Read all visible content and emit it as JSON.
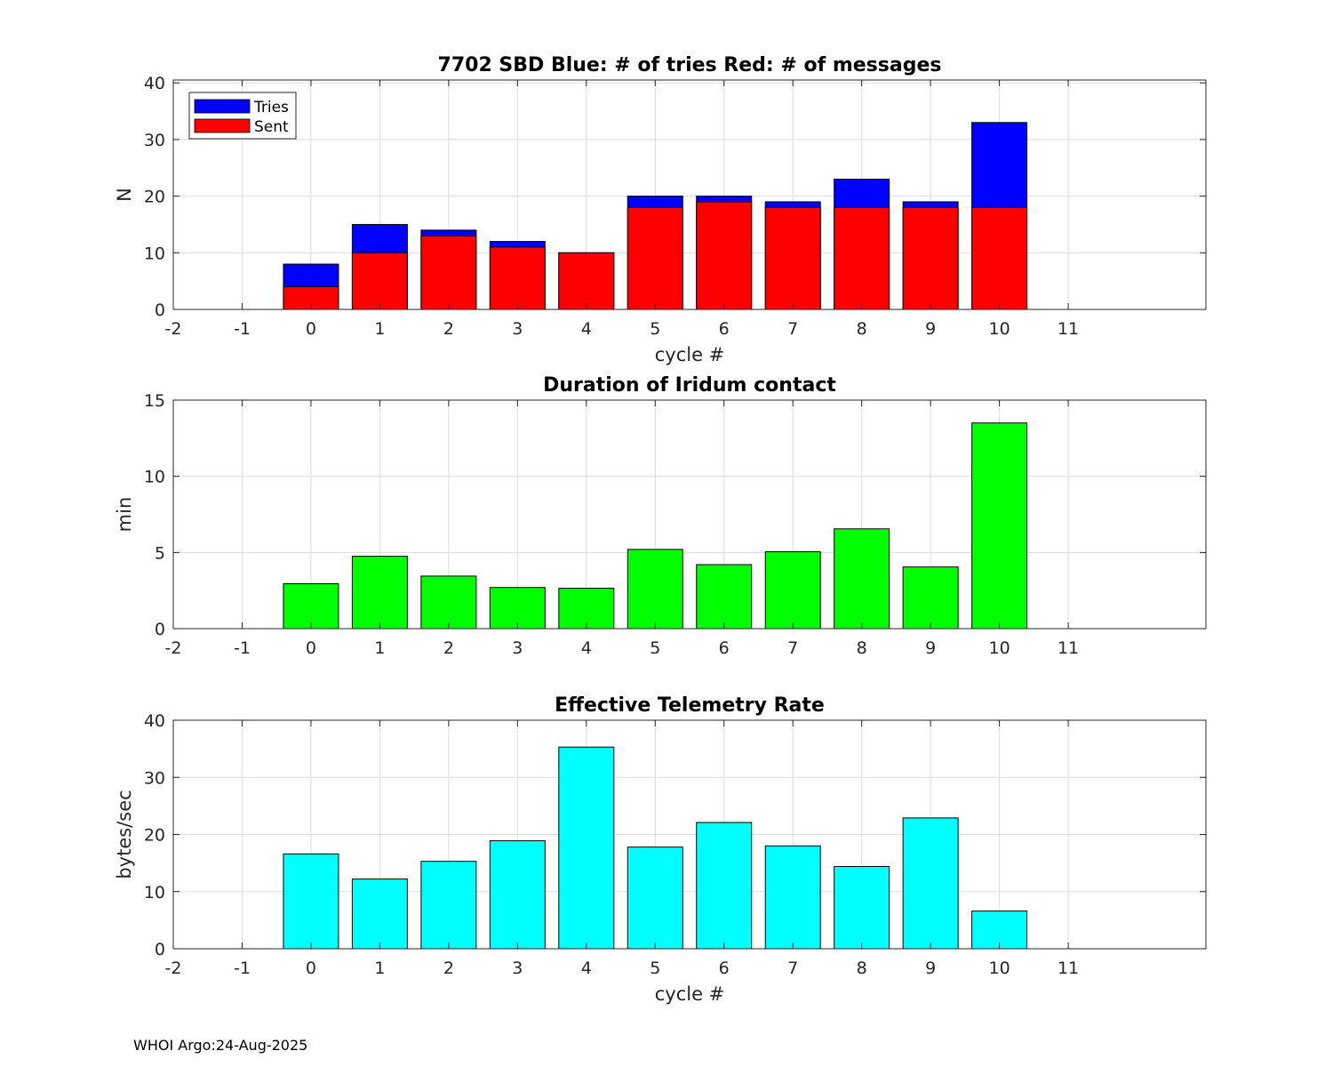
{
  "footer": "WHOI Argo:24-Aug-2025",
  "chart_data": [
    {
      "type": "bar",
      "stacked_overlay": true,
      "title": "7702 SBD  Blue: # of tries   Red: # of messages",
      "xlabel": "cycle #",
      "ylabel": "N",
      "xlim": [
        -2,
        13
      ],
      "ylim": [
        0,
        40.5
      ],
      "xticks": [
        -2,
        -1,
        0,
        1,
        2,
        3,
        4,
        5,
        6,
        7,
        8,
        9,
        10,
        11
      ],
      "yticks": [
        0,
        10,
        20,
        30,
        40
      ],
      "grid": true,
      "legend": {
        "position": "top-left",
        "entries": [
          "Tries",
          "Sent"
        ]
      },
      "x": [
        0,
        1,
        2,
        3,
        4,
        5,
        6,
        7,
        8,
        9,
        10
      ],
      "series": [
        {
          "name": "Tries",
          "color": "#0000ff",
          "values": [
            8,
            15,
            14,
            12,
            10,
            20,
            20,
            19,
            23,
            19,
            33
          ]
        },
        {
          "name": "Sent",
          "color": "#ff0000",
          "values": [
            4,
            10,
            13,
            11,
            10,
            18,
            19,
            18,
            18,
            18,
            18
          ]
        }
      ]
    },
    {
      "type": "bar",
      "title": "Duration of Iridum contact",
      "xlabel": "",
      "ylabel": "min",
      "xlim": [
        -2,
        13
      ],
      "ylim": [
        0,
        15
      ],
      "xticks": [
        -2,
        -1,
        0,
        1,
        2,
        3,
        4,
        5,
        6,
        7,
        8,
        9,
        10,
        11
      ],
      "yticks": [
        0,
        5,
        10,
        15
      ],
      "grid": true,
      "x": [
        0,
        1,
        2,
        3,
        4,
        5,
        6,
        7,
        8,
        9,
        10
      ],
      "series": [
        {
          "name": "Duration",
          "color": "#00ff00",
          "values": [
            2.95,
            4.75,
            3.45,
            2.7,
            2.65,
            5.2,
            4.2,
            5.05,
            6.55,
            4.05,
            13.5
          ]
        }
      ]
    },
    {
      "type": "bar",
      "title": "Effective Telemetry Rate",
      "xlabel": "cycle #",
      "ylabel": "bytes/sec",
      "xlim": [
        -2,
        13
      ],
      "ylim": [
        0,
        40
      ],
      "xticks": [
        -2,
        -1,
        0,
        1,
        2,
        3,
        4,
        5,
        6,
        7,
        8,
        9,
        10,
        11
      ],
      "yticks": [
        0,
        10,
        20,
        30,
        40
      ],
      "grid": true,
      "x": [
        0,
        1,
        2,
        3,
        4,
        5,
        6,
        7,
        8,
        9,
        10
      ],
      "series": [
        {
          "name": "Rate",
          "color": "#00ffff",
          "values": [
            16.6,
            12.2,
            15.3,
            18.9,
            35.3,
            17.8,
            22.1,
            18.0,
            14.4,
            22.9,
            6.6
          ]
        }
      ]
    }
  ]
}
